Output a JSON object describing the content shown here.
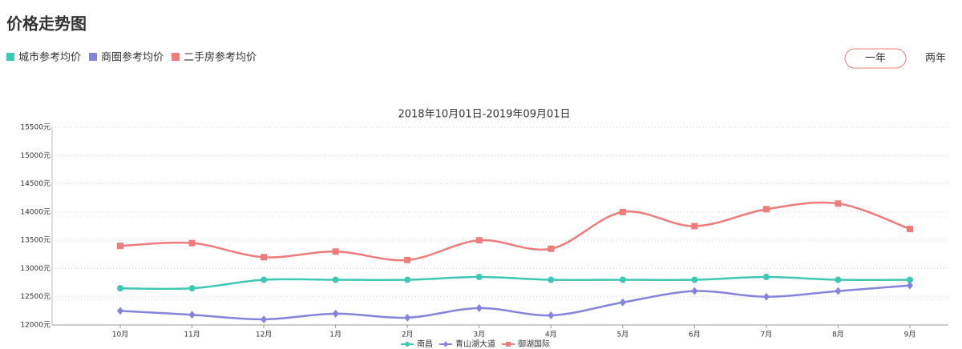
{
  "header": {
    "title": "价格走势图",
    "legend": [
      {
        "label": "城市参考均价",
        "color": "#3cc8b4"
      },
      {
        "label": "商圈参考均价",
        "color": "#8583dc"
      },
      {
        "label": "二手房参考均价",
        "color": "#f07b7b"
      }
    ],
    "buttons": [
      "一年",
      "两年"
    ]
  },
  "chart_data": {
    "type": "line",
    "title": "2018年10月01日-2019年09月01日",
    "categories": [
      "10月",
      "11月",
      "12月",
      "1月",
      "2月",
      "3月",
      "4月",
      "5月",
      "6月",
      "7月",
      "8月",
      "9月"
    ],
    "series": [
      {
        "name": "南昌",
        "color": "#3cc8b4",
        "marker": "circle",
        "values": [
          12650,
          12650,
          12800,
          12800,
          12800,
          12850,
          12800,
          12800,
          12800,
          12850,
          12800,
          12800
        ]
      },
      {
        "name": "青山湖大道",
        "color": "#8583dc",
        "marker": "diamond",
        "values": [
          12250,
          12180,
          12100,
          12200,
          12130,
          12300,
          12170,
          12400,
          12600,
          12500,
          12600,
          12700
        ]
      },
      {
        "name": "御湖国际",
        "color": "#f07b7b",
        "marker": "square",
        "values": [
          13400,
          13450,
          13200,
          13300,
          13150,
          13500,
          13350,
          14000,
          13750,
          14050,
          14150,
          13700
        ]
      }
    ],
    "ylim": [
      12000,
      15500
    ],
    "yticks": [
      {
        "value": 12000,
        "label": "12000元"
      },
      {
        "value": 12500,
        "label": "12500元"
      },
      {
        "value": 13000,
        "label": "13000元"
      },
      {
        "value": 13500,
        "label": "13500元"
      },
      {
        "value": 14000,
        "label": "14000元"
      },
      {
        "value": 14500,
        "label": "14500元"
      },
      {
        "value": 15000,
        "label": "15000元"
      },
      {
        "value": 15500,
        "label": "15500元"
      }
    ],
    "grid": true,
    "smooth": true,
    "legend": "bottom"
  }
}
